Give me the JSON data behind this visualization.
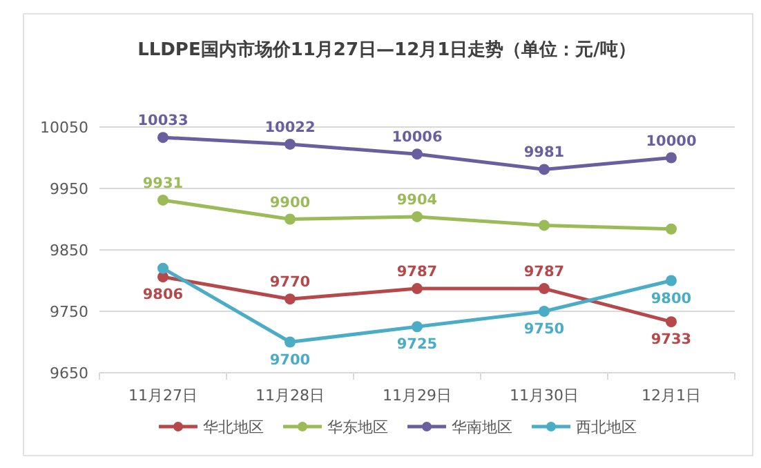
{
  "chart_data": {
    "type": "line",
    "title": "LLDPE国内市场价11月27日—12月1日走势（单位：元/吨）",
    "categories": [
      "11月27日",
      "11月28日",
      "11月29日",
      "11月30日",
      "12月1日"
    ],
    "series": [
      {
        "name": "华北地区",
        "color": "#b5484a",
        "values": [
          9806,
          9770,
          9787,
          9787,
          9733
        ],
        "value_labels": [
          "9806",
          "9770",
          "9787",
          "9787",
          "9733"
        ]
      },
      {
        "name": "华东地区",
        "color": "#9bbb59",
        "values": [
          9931,
          9900,
          9904,
          9890,
          9884
        ],
        "value_labels": [
          "9931",
          "9900",
          "9904",
          null,
          null
        ]
      },
      {
        "name": "华南地区",
        "color": "#6a5f9e",
        "values": [
          10033,
          10022,
          10006,
          9981,
          10000
        ],
        "value_labels": [
          "10033",
          "10022",
          "10006",
          "9981",
          "10000"
        ]
      },
      {
        "name": "西北地区",
        "color": "#4bacc6",
        "values": [
          9820,
          9700,
          9725,
          9750,
          9800
        ],
        "value_labels": [
          null,
          "9700",
          "9725",
          "9750",
          "9800"
        ]
      }
    ],
    "ylim": [
      9650,
      10050
    ],
    "yticks": [
      9650,
      9750,
      9850,
      9950,
      10050
    ],
    "grid": "y",
    "legend": "bottom",
    "marker": "circle",
    "line_style": "solid"
  }
}
